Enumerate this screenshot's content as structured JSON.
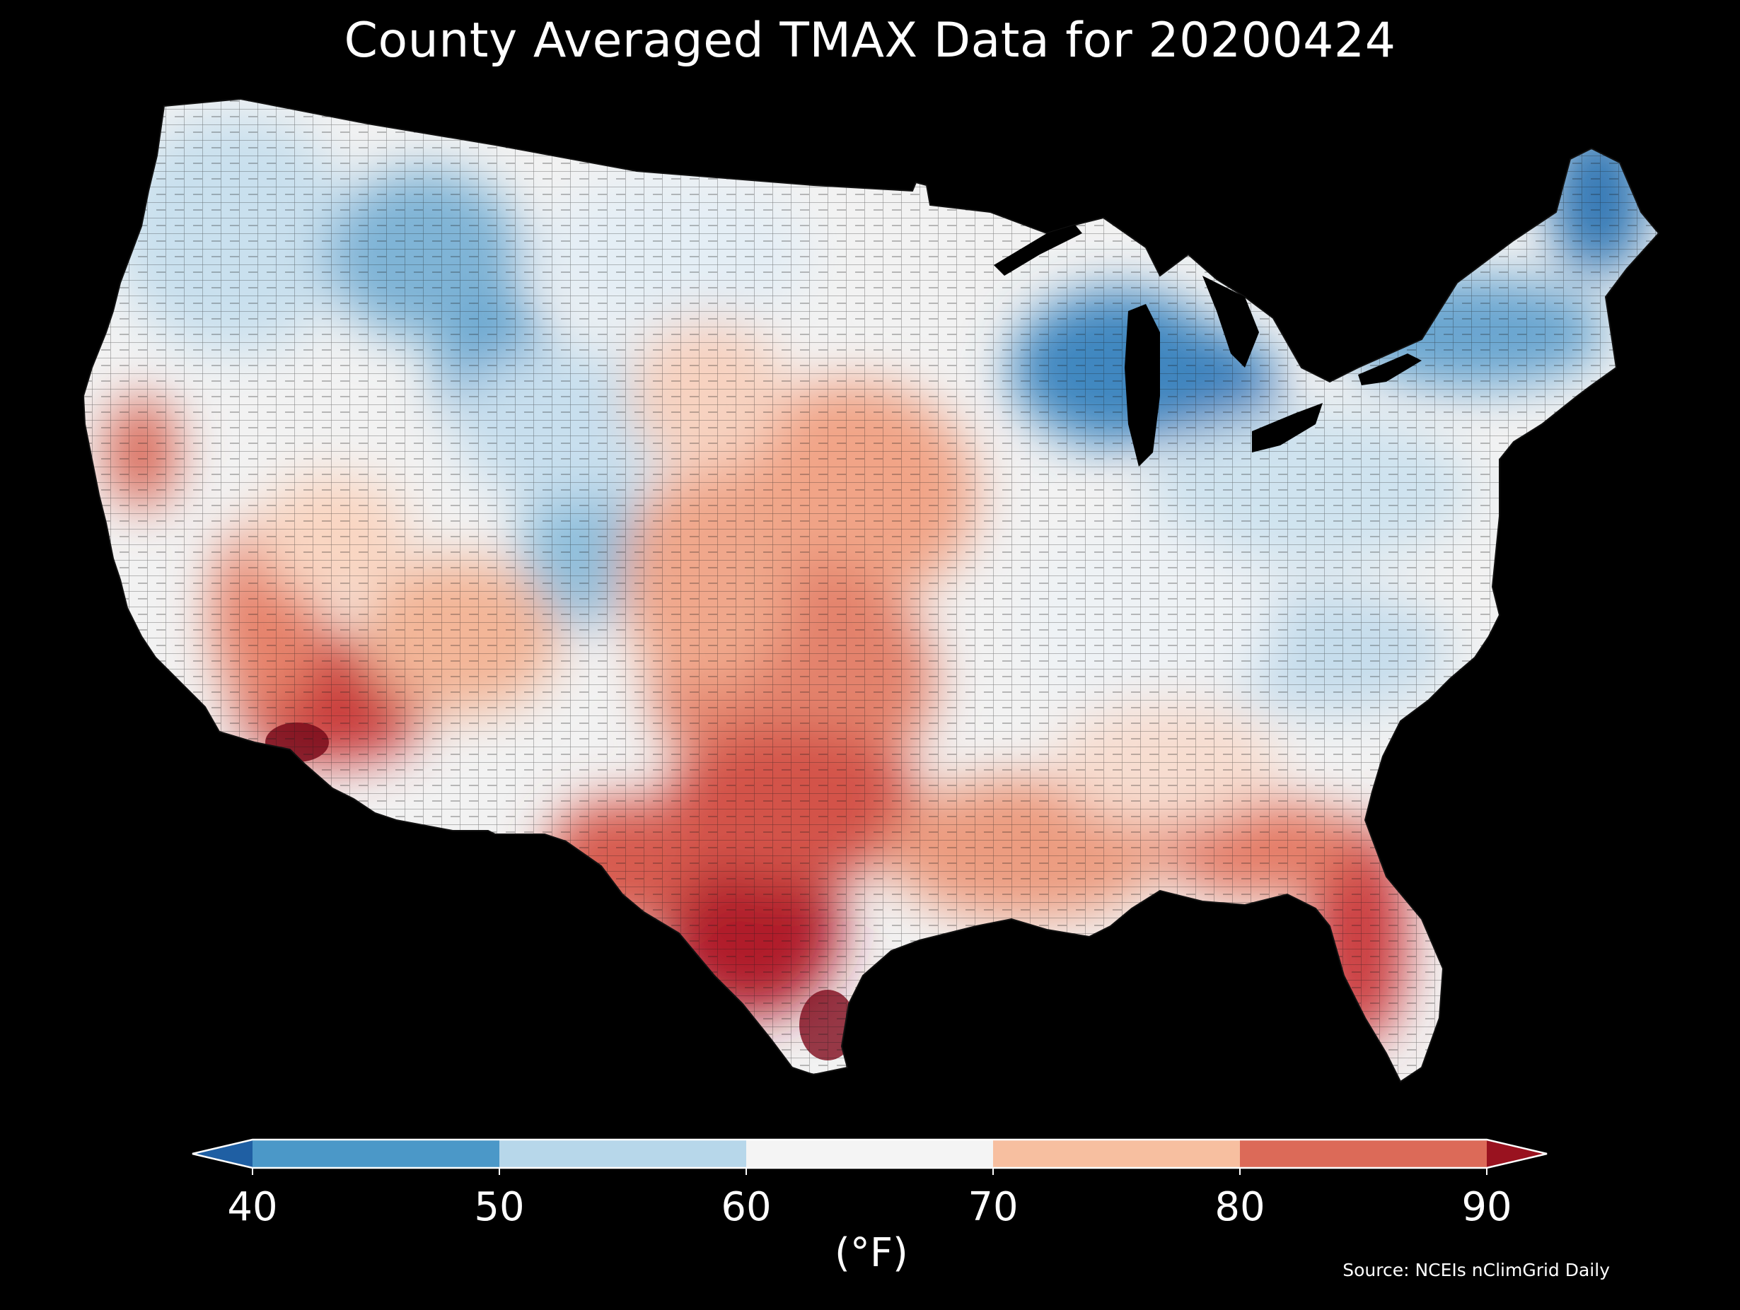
{
  "title": "County Averaged TMAX Data for 20200424",
  "source": "Source: NCEIs nClimGrid Daily",
  "colorbar": {
    "label": "(°F)",
    "ticks": [
      "40",
      "50",
      "60",
      "70",
      "80",
      "90"
    ],
    "colors": {
      "below_40": "#1f5fa3",
      "40_50": "#4b98c8",
      "50_60": "#b7d7ea",
      "60_70": "#f4f4f4",
      "70_80": "#f7bfa0",
      "80_90": "#dc6a58",
      "above_90": "#99121f"
    }
  },
  "map": {
    "region": "Contiguous United States",
    "background": "#000000",
    "border_color": "#222222"
  }
}
